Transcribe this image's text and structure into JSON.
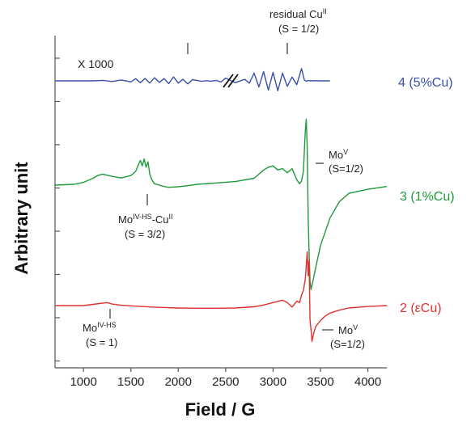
{
  "chart_data": {
    "type": "line",
    "xlabel": "Field / G",
    "ylabel": "Arbitrary unit",
    "xlim": [
      700,
      4200
    ],
    "x_ticks": [
      "1000",
      "1500",
      "2000",
      "2500",
      "3000",
      "3500",
      "4000"
    ],
    "x_tick_values": [
      1000,
      1500,
      2000,
      2500,
      3000,
      3500,
      4000
    ],
    "grid": false,
    "series": [
      {
        "name": "4 (5%Cu)",
        "color": "#3a4fa8",
        "x": [
          700,
          1100,
          1200,
          1300,
          1400,
          1500,
          1550,
          1600,
          1650,
          1700,
          1750,
          1800,
          1850,
          1900,
          1950,
          2000,
          2050,
          2100,
          2150,
          2200,
          2250,
          2300,
          2350,
          2400,
          2450,
          2500,
          2600,
          2700,
          2750,
          2800,
          2850,
          2900,
          2950,
          3000,
          3050,
          3100,
          3150,
          3200,
          3250,
          3300,
          3330,
          3350,
          3370,
          3400,
          3450,
          3500,
          3550,
          3600
        ],
        "y": [
          0,
          0,
          0.3,
          -0.4,
          0.6,
          -0.7,
          1.4,
          -1.2,
          1.6,
          -1.4,
          2.0,
          -1.0,
          1.5,
          -1.8,
          2.6,
          -1.5,
          1.0,
          -2.0,
          0.8,
          0.2,
          -0.3,
          0.1,
          -0.2,
          0.3,
          -0.8,
          1.8,
          -1.2,
          1.0,
          -1.5,
          5.0,
          -4.0,
          6.0,
          -6.0,
          5.5,
          -6.5,
          5.0,
          -3.5,
          2.5,
          -2.5,
          8.0,
          0.5,
          -0.3,
          0.2,
          0.0,
          0.1,
          0.0,
          0.0,
          0.0
        ]
      },
      {
        "name": "3 (1%Cu)",
        "color": "#1f9a3a",
        "x": [
          700,
          900,
          1000,
          1100,
          1150,
          1200,
          1300,
          1400,
          1500,
          1550,
          1600,
          1620,
          1640,
          1660,
          1680,
          1700,
          1720,
          1750,
          1800,
          1850,
          1900,
          2000,
          2100,
          2200,
          2400,
          2600,
          2800,
          2900,
          2950,
          3000,
          3050,
          3100,
          3150,
          3200,
          3250,
          3280,
          3300,
          3320,
          3340,
          3350,
          3360,
          3370,
          3380,
          3390,
          3400,
          3420,
          3450,
          3500,
          3600,
          3700,
          3800,
          4000,
          4200
        ],
        "y": [
          0,
          0.3,
          1.0,
          2.5,
          3.5,
          4.0,
          3.2,
          2.6,
          3.5,
          5.0,
          9.0,
          7.0,
          9.5,
          6.5,
          8.5,
          4.0,
          2.0,
          0.5,
          0.0,
          -0.5,
          -0.8,
          -0.6,
          -0.2,
          0.3,
          0.8,
          1.3,
          2.5,
          5.5,
          6.5,
          7.0,
          5.5,
          6.0,
          4.5,
          6.0,
          2.0,
          0.5,
          1.5,
          5.0,
          20.0,
          24.0,
          14.0,
          -12.0,
          -24.0,
          -35.0,
          -38.0,
          -35.0,
          -30.0,
          -22.0,
          -12.0,
          -6.0,
          -3.0,
          -1.5,
          -0.5
        ]
      },
      {
        "name": "2 (εCu)",
        "color": "#e03030",
        "x": [
          700,
          1000,
          1200,
          1250,
          1300,
          1400,
          1600,
          1800,
          2000,
          2200,
          2400,
          2600,
          2800,
          2900,
          3000,
          3100,
          3150,
          3200,
          3250,
          3280,
          3300,
          3320,
          3340,
          3360,
          3370,
          3380,
          3390,
          3400,
          3410,
          3420,
          3430,
          3450,
          3500,
          3550,
          3600,
          3700,
          3800,
          4000,
          4200
        ],
        "y": [
          0,
          0,
          0.8,
          1.0,
          0.5,
          0.1,
          -0.3,
          -0.6,
          -0.8,
          -0.9,
          -0.9,
          -0.8,
          -0.4,
          0.2,
          1.0,
          1.8,
          1.0,
          -0.5,
          1.5,
          1.0,
          3.5,
          5.0,
          9.0,
          18.0,
          10.0,
          15.0,
          -5.0,
          -8.0,
          -12.0,
          -10.5,
          -9.0,
          -7.0,
          -5.0,
          -3.5,
          -2.5,
          -1.5,
          -0.8,
          -0.3,
          0.0
        ]
      }
    ],
    "annotations": [
      {
        "text": "X 1000"
      },
      {
        "text": "residual Cu",
        "sup": "II",
        "line2": "(S = 1/2)"
      },
      {
        "text": "Mo",
        "sup": "V",
        "line2": "(S=1/2)"
      },
      {
        "text": "Mo",
        "sup": "IV-HS",
        "suffix": "-Cu",
        "sup2": "II",
        "line2": "(S = 3/2)"
      },
      {
        "text": "Mo",
        "sup": "IV-HS",
        "line2": "(S = 1)"
      },
      {
        "text": "Mo",
        "sup": "V",
        "line2": "(S=1/2)"
      }
    ]
  }
}
